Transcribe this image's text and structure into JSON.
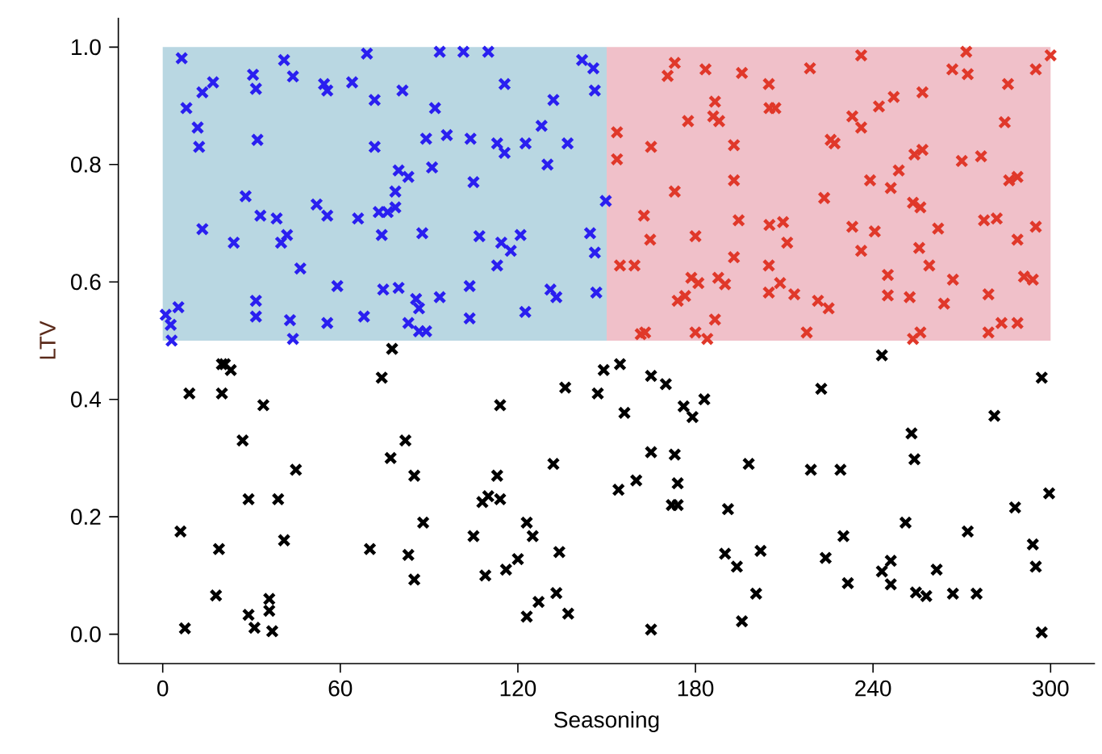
{
  "chart_data": {
    "type": "scatter",
    "xlabel": "Seasoning",
    "ylabel": "LTV",
    "xlim": [
      -15,
      315
    ],
    "ylim": [
      -0.05,
      1.05
    ],
    "xticks": [
      0,
      60,
      120,
      180,
      240,
      300
    ],
    "yticks": [
      {
        "value": 0,
        "label": "0.0"
      },
      0.2,
      0.4,
      0.6,
      0.8,
      {
        "value": 1,
        "label": "1.0"
      }
    ],
    "series": [
      {
        "type": "bar",
        "colors": [
          "#b9d7e2",
          "#f0c0c9"
        ],
        "x": [
          75,
          225
        ],
        "base": [
          0.5,
          0.5
        ],
        "values": [
          0.5,
          0.5
        ]
      },
      {
        "marker": "cross",
        "color": "#2a1ff0",
        "x": [
          6.4,
          41,
          69,
          44,
          30.5,
          31.5,
          17,
          13.4,
          8,
          54.5,
          55.6,
          64,
          71.6,
          11.8,
          12.3,
          32,
          71.6,
          28,
          33,
          38.5,
          13.4,
          42,
          40,
          24,
          52,
          55.6,
          66,
          73,
          74,
          46.5,
          59,
          74.5,
          5.3,
          1,
          2.7,
          3,
          31.5,
          31.5,
          43,
          44,
          55.6,
          68,
          93.6,
          101.6,
          110,
          141.7,
          145.5,
          146,
          115.5,
          132,
          81,
          92,
          89,
          96,
          104,
          113,
          115.5,
          122.6,
          128,
          136.8,
          130,
          91,
          79.7,
          83,
          105,
          78.6,
          78.6,
          76,
          149.7,
          87.7,
          107,
          114.4,
          120.9,
          117.6,
          113,
          144.4,
          146,
          79.7,
          85.6,
          93.6,
          103.7,
          103.7,
          122.5,
          131,
          133,
          146.5,
          83,
          86.6,
          86.6,
          89
        ],
        "values": [
          0.981,
          0.978,
          0.989,
          0.95,
          0.953,
          0.929,
          0.94,
          0.923,
          0.896,
          0.937,
          0.926,
          0.94,
          0.91,
          0.863,
          0.83,
          0.842,
          0.83,
          0.746,
          0.713,
          0.708,
          0.69,
          0.68,
          0.667,
          0.667,
          0.732,
          0.713,
          0.708,
          0.719,
          0.68,
          0.623,
          0.593,
          0.587,
          0.557,
          0.544,
          0.527,
          0.5,
          0.568,
          0.541,
          0.535,
          0.503,
          0.53,
          0.541,
          0.992,
          0.992,
          0.992,
          0.978,
          0.964,
          0.926,
          0.937,
          0.91,
          0.926,
          0.896,
          0.844,
          0.85,
          0.844,
          0.836,
          0.82,
          0.836,
          0.866,
          0.836,
          0.8,
          0.795,
          0.79,
          0.779,
          0.77,
          0.754,
          0.727,
          0.719,
          0.738,
          0.683,
          0.678,
          0.667,
          0.68,
          0.653,
          0.628,
          0.683,
          0.65,
          0.59,
          0.571,
          0.574,
          0.593,
          0.538,
          0.549,
          0.587,
          0.574,
          0.582,
          0.53,
          0.555,
          0.516,
          0.516
        ]
      },
      {
        "marker": "cross",
        "color": "#e0382a",
        "x": [
          173,
          170.6,
          183.4,
          195.7,
          204.8,
          218.7,
          186.6,
          186,
          188,
          177.5,
          205,
          207,
          153.5,
          165,
          153.5,
          193,
          225.7,
          193,
          173,
          223.5,
          162.6,
          164.7,
          180,
          194.6,
          205,
          209.6,
          211,
          154.5,
          159.4,
          193,
          204.8,
          178.6,
          181,
          187.7,
          190,
          208.6,
          204.8,
          213.4,
          221.4,
          176.5,
          174,
          186.6,
          161.5,
          163,
          180,
          184,
          217.6,
          225,
          236,
          271.5,
          266.8,
          272,
          300,
          295,
          285.6,
          256.7,
          247,
          242,
          233,
          236,
          227,
          284.5,
          256.7,
          254,
          248.7,
          239,
          246,
          270,
          276.5,
          286,
          288.8,
          253.5,
          256,
          262,
          277.5,
          281.8,
          295,
          288.8,
          233,
          240.6,
          236,
          255.6,
          259,
          267,
          245,
          291,
          294,
          245,
          252.4,
          264,
          279,
          253.5,
          256,
          279,
          283.4,
          288.8
        ],
        "values": [
          0.973,
          0.951,
          0.962,
          0.956,
          0.937,
          0.964,
          0.907,
          0.882,
          0.874,
          0.874,
          0.896,
          0.896,
          0.855,
          0.83,
          0.809,
          0.833,
          0.842,
          0.773,
          0.754,
          0.743,
          0.713,
          0.672,
          0.678,
          0.705,
          0.697,
          0.702,
          0.667,
          0.628,
          0.628,
          0.642,
          0.628,
          0.607,
          0.598,
          0.607,
          0.596,
          0.598,
          0.582,
          0.579,
          0.568,
          0.576,
          0.568,
          0.536,
          0.511,
          0.514,
          0.514,
          0.503,
          0.514,
          0.555,
          0.986,
          0.992,
          0.962,
          0.954,
          0.986,
          0.962,
          0.937,
          0.923,
          0.915,
          0.899,
          0.882,
          0.863,
          0.836,
          0.872,
          0.825,
          0.817,
          0.79,
          0.773,
          0.76,
          0.806,
          0.814,
          0.773,
          0.779,
          0.735,
          0.727,
          0.691,
          0.705,
          0.708,
          0.694,
          0.672,
          0.694,
          0.686,
          0.653,
          0.658,
          0.628,
          0.604,
          0.612,
          0.609,
          0.604,
          0.577,
          0.574,
          0.563,
          0.579,
          0.503,
          0.514,
          0.514,
          0.53,
          0.53
        ]
      },
      {
        "marker": "cross",
        "color": "#000000",
        "x": [
          77.5,
          20,
          23,
          21,
          74,
          9,
          20,
          34,
          114,
          136,
          147,
          149,
          27,
          82,
          77,
          85,
          45,
          113,
          132,
          29,
          39,
          110,
          114,
          108,
          6,
          88,
          19,
          41,
          70,
          83,
          105,
          123,
          125,
          134,
          85,
          109,
          116,
          120,
          18,
          36,
          29,
          36,
          31,
          37,
          7.5,
          127,
          133,
          123,
          137,
          154.5,
          165,
          170,
          156,
          176,
          183,
          179,
          222.5,
          243,
          297,
          281,
          165,
          173,
          198,
          253,
          254,
          219,
          229,
          154,
          160,
          174,
          172,
          174,
          191,
          299.5,
          288,
          251,
          272,
          230,
          190,
          194,
          202,
          224,
          246,
          243,
          246,
          261.5,
          294,
          295,
          231.5,
          200.5,
          254.5,
          258,
          267,
          275,
          195.7,
          165,
          297
        ],
        "values": [
          0.486,
          0.46,
          0.45,
          0.46,
          0.437,
          0.41,
          0.41,
          0.39,
          0.39,
          0.42,
          0.41,
          0.45,
          0.33,
          0.33,
          0.3,
          0.27,
          0.28,
          0.27,
          0.29,
          0.23,
          0.23,
          0.235,
          0.23,
          0.225,
          0.175,
          0.19,
          0.145,
          0.16,
          0.145,
          0.135,
          0.167,
          0.19,
          0.167,
          0.14,
          0.093,
          0.1,
          0.11,
          0.128,
          0.066,
          0.06,
          0.033,
          0.04,
          0.011,
          0.005,
          0.01,
          0.055,
          0.07,
          0.03,
          0.035,
          0.46,
          0.44,
          0.426,
          0.377,
          0.388,
          0.4,
          0.37,
          0.418,
          0.475,
          0.437,
          0.372,
          0.31,
          0.306,
          0.29,
          0.342,
          0.298,
          0.28,
          0.28,
          0.246,
          0.262,
          0.257,
          0.22,
          0.22,
          0.213,
          0.24,
          0.216,
          0.19,
          0.175,
          0.167,
          0.137,
          0.115,
          0.142,
          0.13,
          0.125,
          0.107,
          0.085,
          0.11,
          0.153,
          0.115,
          0.087,
          0.069,
          0.071,
          0.065,
          0.069,
          0.069,
          0.022,
          0.008,
          0.003
        ]
      }
    ]
  }
}
